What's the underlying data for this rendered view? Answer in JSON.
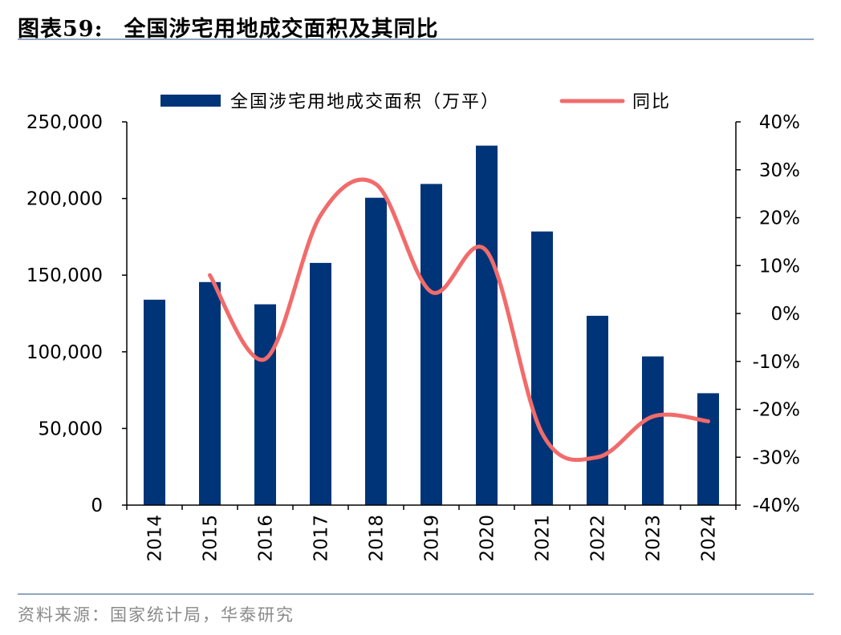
{
  "header": {
    "figure_label": "图表59:",
    "title": "全国涉宅用地成交面积及其同比"
  },
  "source": "资料来源：国家统计局，华泰研究",
  "colors": {
    "bar": "#003478",
    "line": "#f26b6b",
    "rule": "#8fa6bf"
  },
  "chart_data": {
    "type": "bar",
    "categories": [
      "2014",
      "2015",
      "2016",
      "2017",
      "2018",
      "2019",
      "2020",
      "2021",
      "2022",
      "2023",
      "2024"
    ],
    "series": [
      {
        "name": "全国涉宅用地成交面积（万平）",
        "type": "bar",
        "axis": "left",
        "values": [
          134000,
          145500,
          131000,
          158000,
          200500,
          209500,
          234500,
          178500,
          123500,
          97000,
          73000
        ]
      },
      {
        "name": "同比",
        "type": "line",
        "axis": "right",
        "values": [
          null,
          8.0,
          -9.5,
          20.5,
          27.0,
          4.5,
          13.0,
          -25.0,
          -30.0,
          -21.5,
          -22.5
        ]
      }
    ],
    "y_left": {
      "ylim": [
        0,
        250000
      ],
      "ticks": [
        0,
        50000,
        100000,
        150000,
        200000,
        250000
      ],
      "tick_labels": [
        "0",
        "50,000",
        "100,000",
        "150,000",
        "200,000",
        "250,000"
      ]
    },
    "y_right": {
      "ylim": [
        -40,
        40
      ],
      "ticks": [
        -40,
        -30,
        -20,
        -10,
        0,
        10,
        20,
        30,
        40
      ],
      "tick_labels": [
        "-40%",
        "-30%",
        "-20%",
        "-10%",
        "0%",
        "10%",
        "20%",
        "30%",
        "40%"
      ]
    },
    "legend_position": "top",
    "grid": false
  }
}
